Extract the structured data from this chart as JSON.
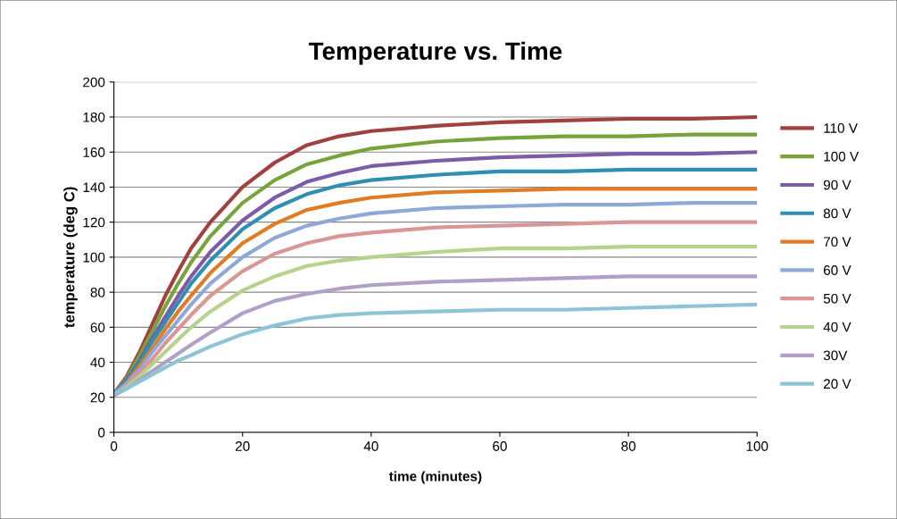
{
  "chart_data": {
    "type": "line",
    "title": "Temperature vs. Time",
    "xlabel": "time (minutes)",
    "ylabel": "temperature (deg C)",
    "x": [
      0,
      2,
      4,
      6,
      8,
      10,
      12,
      15,
      20,
      25,
      30,
      35,
      40,
      50,
      60,
      70,
      80,
      90,
      100
    ],
    "xlim": [
      0,
      100
    ],
    "xticks": [
      0,
      20,
      40,
      60,
      80,
      100
    ],
    "ylim": [
      0,
      200
    ],
    "yticks": [
      0,
      20,
      40,
      60,
      80,
      100,
      120,
      140,
      160,
      180,
      200
    ],
    "grid": "y",
    "legend": "right",
    "marker": "none",
    "line_style": "solid",
    "series": [
      {
        "name": "110 V",
        "color": "#a0413f",
        "values": [
          22,
          32,
          46,
          62,
          78,
          92,
          105,
          120,
          140,
          154,
          164,
          169,
          172,
          175,
          177,
          178,
          179,
          179,
          180
        ]
      },
      {
        "name": "100 V",
        "color": "#77a33a",
        "values": [
          22,
          31,
          44,
          58,
          72,
          85,
          97,
          112,
          131,
          144,
          153,
          158,
          162,
          166,
          168,
          169,
          169,
          170,
          170
        ]
      },
      {
        "name": "90 V",
        "color": "#7d5ba6",
        "values": [
          22,
          30,
          41,
          54,
          66,
          78,
          89,
          103,
          121,
          134,
          143,
          148,
          152,
          155,
          157,
          158,
          159,
          159,
          160
        ]
      },
      {
        "name": "80 V",
        "color": "#2e8fb1",
        "values": [
          22,
          29,
          40,
          52,
          63,
          74,
          85,
          98,
          116,
          128,
          136,
          141,
          144,
          147,
          149,
          149,
          150,
          150,
          150
        ]
      },
      {
        "name": "70 V",
        "color": "#e07c23",
        "values": [
          21,
          28,
          38,
          48,
          59,
          69,
          78,
          91,
          108,
          119,
          127,
          131,
          134,
          137,
          138,
          139,
          139,
          139,
          139
        ]
      },
      {
        "name": "60 V",
        "color": "#8ea9d8",
        "values": [
          22,
          28,
          36,
          46,
          55,
          64,
          73,
          85,
          100,
          111,
          118,
          122,
          125,
          128,
          129,
          130,
          130,
          131,
          131
        ]
      },
      {
        "name": "50 V",
        "color": "#d99694",
        "values": [
          21,
          27,
          34,
          42,
          51,
          59,
          67,
          78,
          92,
          102,
          108,
          112,
          114,
          117,
          118,
          119,
          120,
          120,
          120
        ]
      },
      {
        "name": "40 V",
        "color": "#b6d28c",
        "values": [
          21,
          26,
          32,
          39,
          46,
          53,
          60,
          69,
          81,
          89,
          95,
          98,
          100,
          103,
          105,
          105,
          106,
          106,
          106
        ]
      },
      {
        "name": "30V",
        "color": "#b0a0c7",
        "values": [
          21,
          25,
          30,
          35,
          40,
          45,
          50,
          57,
          68,
          75,
          79,
          82,
          84,
          86,
          87,
          88,
          89,
          89,
          89
        ]
      },
      {
        "name": "20 V",
        "color": "#8dc4d6",
        "values": [
          22,
          25,
          29,
          33,
          37,
          41,
          44,
          49,
          56,
          61,
          65,
          67,
          68,
          69,
          70,
          70,
          71,
          72,
          73
        ]
      }
    ]
  }
}
